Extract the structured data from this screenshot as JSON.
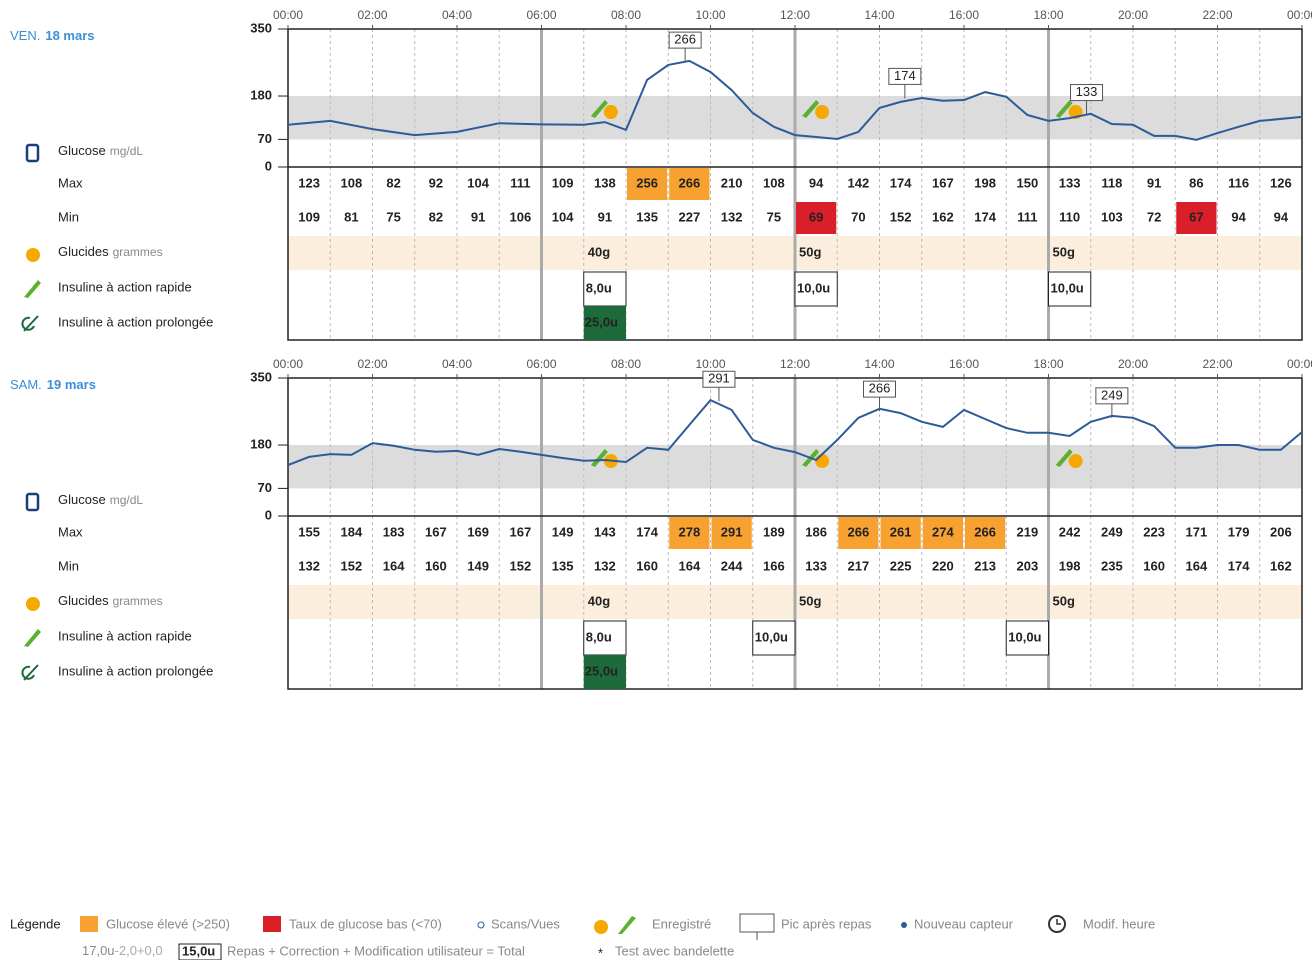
{
  "row_labels": {
    "glucose": "Glucose",
    "glucose_unit": "mg/dL",
    "max": "Max",
    "min": "Min",
    "carbs": "Glucides",
    "carbs_unit": "grammes",
    "rapid": "Insuline à action rapide",
    "long": "Insuline à action prolongée"
  },
  "chart_data": [
    {
      "type": "line",
      "day": "VEN.",
      "date": "18 mars",
      "high_threshold": 250,
      "low_threshold": 70,
      "xlim": [
        0,
        24
      ],
      "xticks": [
        {
          "value": 0,
          "label": "00:00"
        },
        {
          "value": 2,
          "label": "02:00"
        },
        {
          "value": 4,
          "label": "04:00"
        },
        {
          "value": 6,
          "label": "06:00"
        },
        {
          "value": 8,
          "label": "08:00"
        },
        {
          "value": 10,
          "label": "10:00"
        },
        {
          "value": 12,
          "label": "12:00"
        },
        {
          "value": 14,
          "label": "14:00"
        },
        {
          "value": 16,
          "label": "16:00"
        },
        {
          "value": 18,
          "label": "18:00"
        },
        {
          "value": 20,
          "label": "20:00"
        },
        {
          "value": 22,
          "label": "22:00"
        },
        {
          "value": 24,
          "label": "00:00"
        }
      ],
      "ylim": [
        0,
        350
      ],
      "yticks": [
        0,
        70,
        180,
        350
      ],
      "target_range": [
        70,
        180
      ],
      "x": [
        0,
        1,
        2,
        3,
        4,
        5,
        6,
        7,
        7.5,
        8,
        8.5,
        9,
        9.5,
        10,
        10.5,
        11,
        11.5,
        12,
        12.5,
        13,
        13.5,
        14,
        14.5,
        15,
        15.5,
        16,
        16.5,
        17,
        17.5,
        18,
        18.5,
        19,
        19.5,
        20,
        20.5,
        21,
        21.5,
        22,
        22.5,
        23,
        24
      ],
      "series": [
        {
          "name": "Glucose",
          "color": "#2c5c98",
          "values": [
            107,
            117,
            96,
            81,
            89,
            111,
            108,
            107,
            114,
            94,
            221,
            259,
            269,
            241,
            195,
            137,
            102,
            81,
            76,
            71,
            89,
            150,
            165,
            175,
            168,
            170,
            190,
            178,
            132,
            117,
            124,
            135,
            109,
            107,
            79,
            79,
            69,
            86,
            102,
            117,
            127
          ]
        }
      ],
      "peaks": [
        {
          "x": 9.4,
          "value": 266
        },
        {
          "x": 14.6,
          "value": 174
        },
        {
          "x": 18.9,
          "value": 133
        }
      ],
      "max": [
        123,
        108,
        82,
        92,
        104,
        111,
        109,
        138,
        256,
        266,
        210,
        108,
        94,
        142,
        174,
        167,
        198,
        150,
        133,
        118,
        91,
        86,
        116,
        126
      ],
      "min": [
        109,
        81,
        75,
        82,
        91,
        106,
        104,
        91,
        135,
        227,
        132,
        75,
        69,
        70,
        152,
        162,
        174,
        111,
        110,
        103,
        72,
        67,
        94,
        94
      ],
      "carbs": [
        {
          "hour": 7,
          "value": 40,
          "label": "40g"
        },
        {
          "hour": 12,
          "value": 50,
          "label": "50g"
        },
        {
          "hour": 18,
          "value": 50,
          "label": "50g"
        }
      ],
      "rapid": [
        {
          "hour": 7,
          "value": 8,
          "label": "8,0u"
        },
        {
          "hour": 12,
          "value": 10,
          "label": "10,0u"
        },
        {
          "hour": 18,
          "value": 10,
          "label": "10,0u"
        }
      ],
      "long": [
        {
          "hour": 7,
          "value": 25,
          "label": "25,0u"
        }
      ]
    },
    {
      "type": "line",
      "day": "SAM.",
      "date": "19 mars",
      "high_threshold": 250,
      "low_threshold": 70,
      "xlim": [
        0,
        24
      ],
      "xticks": [
        {
          "value": 0,
          "label": "00:00"
        },
        {
          "value": 2,
          "label": "02:00"
        },
        {
          "value": 4,
          "label": "04:00"
        },
        {
          "value": 6,
          "label": "06:00"
        },
        {
          "value": 8,
          "label": "08:00"
        },
        {
          "value": 10,
          "label": "10:00"
        },
        {
          "value": 12,
          "label": "12:00"
        },
        {
          "value": 14,
          "label": "14:00"
        },
        {
          "value": 16,
          "label": "16:00"
        },
        {
          "value": 18,
          "label": "18:00"
        },
        {
          "value": 20,
          "label": "20:00"
        },
        {
          "value": 22,
          "label": "22:00"
        },
        {
          "value": 24,
          "label": "00:00"
        }
      ],
      "ylim": [
        0,
        350
      ],
      "yticks": [
        0,
        70,
        180,
        350
      ],
      "target_range": [
        70,
        180
      ],
      "x": [
        0,
        0.5,
        1,
        1.5,
        2,
        2.5,
        3,
        3.5,
        4,
        4.5,
        5,
        5.5,
        6,
        6.5,
        7,
        7.5,
        8,
        8.5,
        9,
        9.5,
        10,
        10.5,
        11,
        11.5,
        12,
        12.5,
        13,
        13.5,
        14,
        14.5,
        15,
        15.5,
        16,
        16.5,
        17,
        17.5,
        18,
        18.5,
        19,
        19.5,
        20,
        20.5,
        21,
        21.5,
        22,
        22.5,
        23,
        23.5,
        24
      ],
      "series": [
        {
          "name": "Glucose",
          "color": "#2c5c98",
          "values": [
            129,
            150,
            157,
            155,
            185,
            178,
            168,
            163,
            165,
            155,
            170,
            163,
            155,
            147,
            140,
            142,
            137,
            173,
            168,
            231,
            294,
            269,
            193,
            173,
            162,
            142,
            193,
            249,
            272,
            261,
            239,
            226,
            269,
            246,
            223,
            211,
            211,
            203,
            239,
            254,
            249,
            228,
            173,
            173,
            180,
            180,
            168,
            168,
            213
          ]
        }
      ],
      "peaks": [
        {
          "x": 10.2,
          "value": 291
        },
        {
          "x": 14,
          "value": 266
        },
        {
          "x": 19.5,
          "value": 249
        }
      ],
      "max": [
        155,
        184,
        183,
        167,
        169,
        167,
        149,
        143,
        174,
        278,
        291,
        189,
        186,
        266,
        261,
        274,
        266,
        219,
        242,
        249,
        223,
        171,
        179,
        206
      ],
      "min": [
        132,
        152,
        164,
        160,
        149,
        152,
        135,
        132,
        160,
        164,
        244,
        166,
        133,
        217,
        225,
        220,
        213,
        203,
        198,
        235,
        160,
        164,
        174,
        162
      ],
      "carbs": [
        {
          "hour": 7,
          "value": 40,
          "label": "40g"
        },
        {
          "hour": 12,
          "value": 50,
          "label": "50g"
        },
        {
          "hour": 18,
          "value": 50,
          "label": "50g"
        }
      ],
      "rapid": [
        {
          "hour": 7,
          "value": 8,
          "label": "8,0u"
        },
        {
          "hour": 11,
          "value": 10,
          "label": "10,0u"
        },
        {
          "hour": 17,
          "value": 10,
          "label": "10,0u"
        }
      ],
      "long": [
        {
          "hour": 7,
          "value": 25,
          "label": "25,0u"
        }
      ]
    }
  ],
  "legend": {
    "title": "Légende",
    "high": "Glucose élevé (>250)",
    "low": "Taux de glucose bas (<70)",
    "scans": "Scans/Vues",
    "logged": "Enregistré",
    "peak": "Pic après repas",
    "sensor": "Nouveau capteur",
    "time": "Modif. heure",
    "example": {
      "meal": "17,0u",
      "correction": "-2,0",
      "user": "+0,0",
      "total": "15,0u",
      "text": "Repas + Correction + Modification utilisateur = Total"
    },
    "star": "*",
    "strip": "Test avec bandelette"
  }
}
